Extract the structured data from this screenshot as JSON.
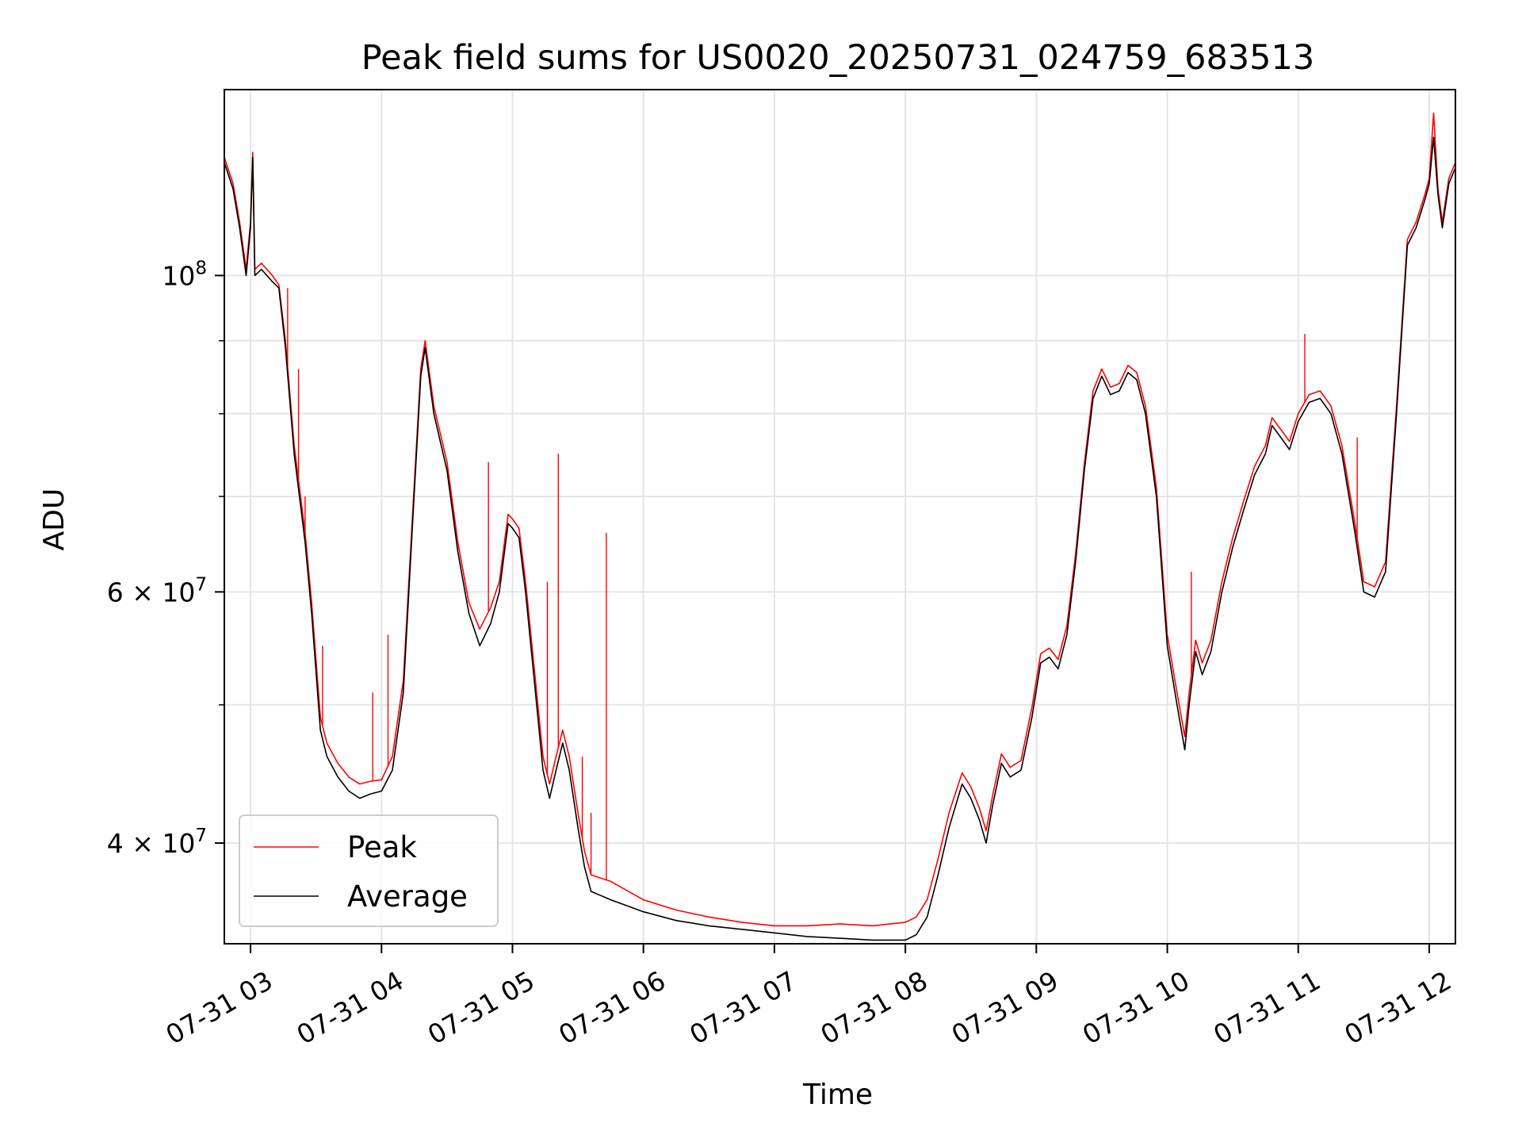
{
  "chart_data": {
    "type": "line",
    "title": "Peak field sums for US0020_20250731_024759_683513",
    "xlabel": "Time",
    "ylabel": "ADU",
    "yscale": "log",
    "ylim": [
      34000000,
      135000000
    ],
    "xlim": [
      "07-31 02:48",
      "07-31 12:12"
    ],
    "x_ticks": [
      {
        "t": "03:00",
        "label": "07-31 03"
      },
      {
        "t": "04:00",
        "label": "07-31 04"
      },
      {
        "t": "05:00",
        "label": "07-31 05"
      },
      {
        "t": "06:00",
        "label": "07-31 06"
      },
      {
        "t": "07:00",
        "label": "07-31 07"
      },
      {
        "t": "08:00",
        "label": "07-31 08"
      },
      {
        "t": "09:00",
        "label": "07-31 09"
      },
      {
        "t": "10:00",
        "label": "07-31 10"
      },
      {
        "t": "11:00",
        "label": "07-31 11"
      },
      {
        "t": "12:00",
        "label": "07-31 12"
      }
    ],
    "y_ticks_major": [
      {
        "v": 100000000,
        "base": "10",
        "exp": "8"
      },
      {
        "v": 60000000,
        "base": "6 × 10",
        "exp": "7"
      },
      {
        "v": 40000000,
        "base": "4 × 10",
        "exp": "7"
      }
    ],
    "y_ticks_minor": [
      50000000,
      70000000,
      80000000,
      90000000
    ],
    "grid": true,
    "legend_position": "lower-left",
    "series": [
      {
        "name": "Average",
        "color": "#000000",
        "points": [
          [
            "02:48",
            120000000
          ],
          [
            "02:52",
            115000000
          ],
          [
            "02:55",
            108000000
          ],
          [
            "02:58",
            100000000
          ],
          [
            "03:00",
            108000000
          ],
          [
            "03:01",
            121000000
          ],
          [
            "03:02",
            100000000
          ],
          [
            "03:05",
            101000000
          ],
          [
            "03:10",
            99000000
          ],
          [
            "03:13",
            98000000
          ],
          [
            "03:16",
            89000000
          ],
          [
            "03:20",
            75000000
          ],
          [
            "03:25",
            65000000
          ],
          [
            "03:28",
            58000000
          ],
          [
            "03:32",
            48000000
          ],
          [
            "03:35",
            46000000
          ],
          [
            "03:40",
            44500000
          ],
          [
            "03:45",
            43500000
          ],
          [
            "03:50",
            43000000
          ],
          [
            "03:55",
            43300000
          ],
          [
            "04:00",
            43500000
          ],
          [
            "04:05",
            45000000
          ],
          [
            "04:10",
            51000000
          ],
          [
            "04:14",
            66000000
          ],
          [
            "04:18",
            85000000
          ],
          [
            "04:20",
            89000000
          ],
          [
            "04:24",
            80000000
          ],
          [
            "04:30",
            73000000
          ],
          [
            "04:35",
            64000000
          ],
          [
            "04:40",
            58000000
          ],
          [
            "04:45",
            55000000
          ],
          [
            "04:50",
            57000000
          ],
          [
            "04:54",
            60000000
          ],
          [
            "04:58",
            67000000
          ],
          [
            "05:00",
            66500000
          ],
          [
            "05:03",
            65500000
          ],
          [
            "05:06",
            60000000
          ],
          [
            "05:10",
            52000000
          ],
          [
            "05:14",
            45000000
          ],
          [
            "05:17",
            43000000
          ],
          [
            "05:20",
            45000000
          ],
          [
            "05:23",
            47000000
          ],
          [
            "05:26",
            45000000
          ],
          [
            "05:30",
            41000000
          ],
          [
            "05:33",
            38500000
          ],
          [
            "05:36",
            37000000
          ],
          [
            "05:45",
            36500000
          ],
          [
            "06:00",
            35800000
          ],
          [
            "06:15",
            35300000
          ],
          [
            "06:30",
            35000000
          ],
          [
            "06:45",
            34800000
          ],
          [
            "07:00",
            34600000
          ],
          [
            "07:15",
            34400000
          ],
          [
            "07:30",
            34300000
          ],
          [
            "07:45",
            34200000
          ],
          [
            "08:00",
            34200000
          ],
          [
            "08:05",
            34500000
          ],
          [
            "08:10",
            35500000
          ],
          [
            "08:15",
            38000000
          ],
          [
            "08:20",
            41000000
          ],
          [
            "08:26",
            44000000
          ],
          [
            "08:30",
            43000000
          ],
          [
            "08:34",
            41500000
          ],
          [
            "08:37",
            40000000
          ],
          [
            "08:40",
            42500000
          ],
          [
            "08:44",
            45500000
          ],
          [
            "08:48",
            44500000
          ],
          [
            "08:53",
            45000000
          ],
          [
            "08:58",
            49000000
          ],
          [
            "09:02",
            53500000
          ],
          [
            "09:06",
            54000000
          ],
          [
            "09:10",
            53000000
          ],
          [
            "09:14",
            56000000
          ],
          [
            "09:18",
            63000000
          ],
          [
            "09:22",
            73000000
          ],
          [
            "09:26",
            82000000
          ],
          [
            "09:30",
            85000000
          ],
          [
            "09:34",
            82500000
          ],
          [
            "09:38",
            83000000
          ],
          [
            "09:42",
            85500000
          ],
          [
            "09:46",
            84500000
          ],
          [
            "09:50",
            80000000
          ],
          [
            "09:55",
            70000000
          ],
          [
            "10:00",
            55000000
          ],
          [
            "10:04",
            50500000
          ],
          [
            "10:08",
            46500000
          ],
          [
            "10:10",
            50000000
          ],
          [
            "10:13",
            54500000
          ],
          [
            "10:16",
            52500000
          ],
          [
            "10:20",
            54500000
          ],
          [
            "10:25",
            60000000
          ],
          [
            "10:30",
            64500000
          ],
          [
            "10:35",
            68500000
          ],
          [
            "10:40",
            72500000
          ],
          [
            "10:45",
            75000000
          ],
          [
            "10:48",
            78500000
          ],
          [
            "10:52",
            77000000
          ],
          [
            "10:56",
            75500000
          ],
          [
            "11:00",
            79000000
          ],
          [
            "11:05",
            81500000
          ],
          [
            "11:10",
            82000000
          ],
          [
            "11:15",
            80000000
          ],
          [
            "11:20",
            75000000
          ],
          [
            "11:26",
            66000000
          ],
          [
            "11:30",
            60000000
          ],
          [
            "11:35",
            59500000
          ],
          [
            "11:40",
            62000000
          ],
          [
            "11:45",
            80000000
          ],
          [
            "11:50",
            105000000
          ],
          [
            "11:54",
            108000000
          ],
          [
            "11:58",
            113000000
          ],
          [
            "12:00",
            116000000
          ],
          [
            "12:02",
            125000000
          ],
          [
            "12:04",
            114000000
          ],
          [
            "12:06",
            108000000
          ],
          [
            "12:09",
            116000000
          ],
          [
            "12:12",
            119000000
          ]
        ]
      },
      {
        "name": "Peak",
        "color": "#ff0000",
        "points": [
          [
            "02:48",
            121000000
          ],
          [
            "02:52",
            116000000
          ],
          [
            "02:55",
            109000000
          ],
          [
            "02:58",
            101000000
          ],
          [
            "03:00",
            109000000
          ],
          [
            "03:01",
            122000000
          ],
          [
            "03:02",
            101000000
          ],
          [
            "03:05",
            102000000
          ],
          [
            "03:10",
            100000000
          ],
          [
            "03:13",
            98500000
          ],
          [
            "03:16",
            90000000
          ],
          [
            "03:20",
            76000000
          ],
          [
            "03:25",
            66000000
          ],
          [
            "03:28",
            59000000
          ],
          [
            "03:32",
            49000000
          ],
          [
            "03:35",
            47000000
          ],
          [
            "03:40",
            45500000
          ],
          [
            "03:45",
            44500000
          ],
          [
            "03:50",
            44000000
          ],
          [
            "03:55",
            44200000
          ],
          [
            "04:00",
            44300000
          ],
          [
            "04:05",
            46000000
          ],
          [
            "04:10",
            52000000
          ],
          [
            "04:14",
            67000000
          ],
          [
            "04:18",
            86000000
          ],
          [
            "04:20",
            90000000
          ],
          [
            "04:24",
            81000000
          ],
          [
            "04:30",
            74000000
          ],
          [
            "04:35",
            65000000
          ],
          [
            "04:40",
            59000000
          ],
          [
            "04:45",
            56500000
          ],
          [
            "04:50",
            58500000
          ],
          [
            "04:54",
            61000000
          ],
          [
            "04:58",
            68000000
          ],
          [
            "05:00",
            67500000
          ],
          [
            "05:03",
            66500000
          ],
          [
            "05:06",
            61000000
          ],
          [
            "05:10",
            53000000
          ],
          [
            "05:14",
            46000000
          ],
          [
            "05:17",
            44000000
          ],
          [
            "05:20",
            46000000
          ],
          [
            "05:23",
            48000000
          ],
          [
            "05:26",
            46000000
          ],
          [
            "05:30",
            42000000
          ],
          [
            "05:33",
            39500000
          ],
          [
            "05:36",
            38000000
          ],
          [
            "05:45",
            37600000
          ],
          [
            "06:00",
            36500000
          ],
          [
            "06:15",
            35900000
          ],
          [
            "06:30",
            35500000
          ],
          [
            "06:45",
            35200000
          ],
          [
            "07:00",
            35000000
          ],
          [
            "07:15",
            35000000
          ],
          [
            "07:30",
            35100000
          ],
          [
            "07:45",
            35000000
          ],
          [
            "08:00",
            35200000
          ],
          [
            "08:05",
            35500000
          ],
          [
            "08:10",
            36500000
          ],
          [
            "08:15",
            39000000
          ],
          [
            "08:20",
            42000000
          ],
          [
            "08:26",
            44800000
          ],
          [
            "08:30",
            43800000
          ],
          [
            "08:34",
            42300000
          ],
          [
            "08:37",
            40800000
          ],
          [
            "08:40",
            43200000
          ],
          [
            "08:44",
            46200000
          ],
          [
            "08:48",
            45200000
          ],
          [
            "08:53",
            45700000
          ],
          [
            "08:58",
            49800000
          ],
          [
            "09:02",
            54300000
          ],
          [
            "09:06",
            54800000
          ],
          [
            "09:10",
            53800000
          ],
          [
            "09:14",
            56800000
          ],
          [
            "09:18",
            63800000
          ],
          [
            "09:22",
            73800000
          ],
          [
            "09:26",
            83000000
          ],
          [
            "09:30",
            86000000
          ],
          [
            "09:34",
            83500000
          ],
          [
            "09:38",
            84000000
          ],
          [
            "09:42",
            86500000
          ],
          [
            "09:46",
            85500000
          ],
          [
            "09:50",
            81000000
          ],
          [
            "09:55",
            71000000
          ],
          [
            "10:00",
            56000000
          ],
          [
            "10:04",
            51500000
          ],
          [
            "10:08",
            47500000
          ],
          [
            "10:10",
            51000000
          ],
          [
            "10:13",
            55500000
          ],
          [
            "10:16",
            53500000
          ],
          [
            "10:20",
            55500000
          ],
          [
            "10:25",
            61000000
          ],
          [
            "10:30",
            65500000
          ],
          [
            "10:35",
            69500000
          ],
          [
            "10:40",
            73500000
          ],
          [
            "10:45",
            76000000
          ],
          [
            "10:48",
            79500000
          ],
          [
            "10:52",
            78000000
          ],
          [
            "10:56",
            76500000
          ],
          [
            "11:00",
            80000000
          ],
          [
            "11:05",
            82500000
          ],
          [
            "11:10",
            83000000
          ],
          [
            "11:15",
            81000000
          ],
          [
            "11:20",
            76000000
          ],
          [
            "11:26",
            67000000
          ],
          [
            "11:30",
            61000000
          ],
          [
            "11:35",
            60500000
          ],
          [
            "11:40",
            63000000
          ],
          [
            "11:45",
            81000000
          ],
          [
            "11:50",
            106000000
          ],
          [
            "11:54",
            109000000
          ],
          [
            "11:58",
            114000000
          ],
          [
            "12:00",
            117000000
          ],
          [
            "12:02",
            130000000
          ],
          [
            "12:04",
            115000000
          ],
          [
            "12:06",
            109000000
          ],
          [
            "12:09",
            117000000
          ],
          [
            "12:12",
            120000000
          ]
        ],
        "spikes": [
          [
            "03:17",
            98000000
          ],
          [
            "03:22",
            86000000
          ],
          [
            "03:25",
            70000000
          ],
          [
            "03:33",
            55000000
          ],
          [
            "03:56",
            51000000
          ],
          [
            "04:03",
            56000000
          ],
          [
            "04:49",
            74000000
          ],
          [
            "05:16",
            61000000
          ],
          [
            "05:21",
            75000000
          ],
          [
            "05:32",
            46000000
          ],
          [
            "05:36",
            42000000
          ],
          [
            "05:43",
            66000000
          ],
          [
            "11:03",
            91000000
          ],
          [
            "11:27",
            77000000
          ],
          [
            "10:11",
            62000000
          ]
        ]
      }
    ]
  }
}
